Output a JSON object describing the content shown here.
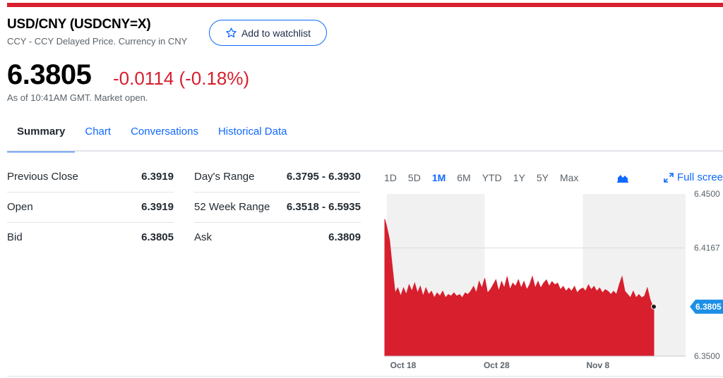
{
  "header": {
    "title": "USD/CNY (USDCNY=X)",
    "subtitle": "CCY - CCY Delayed Price. Currency in CNY",
    "watchlist_label": "Add to watchlist"
  },
  "quote": {
    "price": "6.3805",
    "change": "-0.0114 (-0.18%)",
    "as_of": "As of 10:41AM GMT. Market open."
  },
  "tabs": [
    {
      "label": "Summary",
      "active": true
    },
    {
      "label": "Chart",
      "active": false
    },
    {
      "label": "Conversations",
      "active": false
    },
    {
      "label": "Historical Data",
      "active": false
    }
  ],
  "stats_left": [
    {
      "label": "Previous Close",
      "value": "6.3919"
    },
    {
      "label": "Open",
      "value": "6.3919"
    },
    {
      "label": "Bid",
      "value": "6.3805"
    }
  ],
  "stats_right": [
    {
      "label": "Day's Range",
      "value": "6.3795 - 6.3930"
    },
    {
      "label": "52 Week Range",
      "value": "6.3518 - 6.5935"
    },
    {
      "label": "Ask",
      "value": "6.3809"
    }
  ],
  "chart_controls": {
    "ranges": [
      {
        "label": "1D",
        "active": false
      },
      {
        "label": "5D",
        "active": false
      },
      {
        "label": "1M",
        "active": true
      },
      {
        "label": "6M",
        "active": false
      },
      {
        "label": "YTD",
        "active": false
      },
      {
        "label": "1Y",
        "active": false
      },
      {
        "label": "5Y",
        "active": false
      },
      {
        "label": "Max",
        "active": false
      }
    ],
    "chart_type_icon": "area-chart-icon",
    "fullscreen_label": "Full scree",
    "fullscreen_icon": "expand-icon"
  },
  "colors": {
    "accent_red": "#d71f2e",
    "link_blue": "#0f69ff",
    "current_marker": "#1b8fe6"
  },
  "chart_data": {
    "type": "area",
    "ylim": [
      6.35,
      6.45
    ],
    "y_ticks": [
      "6.4500",
      "6.4167",
      "6.3500"
    ],
    "current_value_label": "6.3805",
    "current_value": 6.3805,
    "x_tick_labels": [
      {
        "label": "Oct 18",
        "x": 0
      },
      {
        "label": "Oct 28",
        "x": 10
      },
      {
        "label": "Nov 8",
        "x": 21
      }
    ],
    "shaded_day_ranges": [
      [
        0,
        10.5
      ],
      [
        21,
        32
      ]
    ],
    "x_range": [
      -0.2,
      32
    ],
    "series": [
      {
        "x": [
          -0.2,
          0.0,
          0.3,
          0.6,
          0.9,
          1.2,
          1.5,
          1.8,
          2.1,
          2.4,
          2.7,
          3.0,
          3.3,
          3.6,
          3.9,
          4.2,
          4.5,
          4.8,
          5.1,
          5.4,
          5.7,
          6.0,
          6.3,
          6.6,
          6.9,
          7.2,
          7.5,
          7.8,
          8.1,
          8.4,
          8.7,
          9.0,
          9.3,
          9.6,
          9.9,
          10.2,
          10.5,
          10.8,
          11.1,
          11.4,
          11.7,
          12.0,
          12.3,
          12.6,
          12.9,
          13.2,
          13.5,
          13.8,
          14.1,
          14.4,
          14.7,
          15.0,
          15.3,
          15.6,
          15.9,
          16.2,
          16.5,
          16.8,
          17.1,
          17.4,
          17.7,
          18.0,
          18.3,
          18.6,
          18.9,
          19.2,
          19.5,
          19.8,
          20.1,
          20.4,
          20.7,
          21.0,
          21.3,
          21.6,
          21.9,
          22.2,
          22.5,
          22.8,
          23.1,
          23.4,
          23.7,
          24.0,
          24.3,
          24.6,
          24.9,
          25.2,
          25.5,
          25.8,
          26.1,
          26.4,
          26.7,
          27.0,
          27.3,
          27.6,
          27.9,
          28.2,
          28.5,
          28.6
        ],
        "values": [
          6.4345,
          6.43,
          6.422,
          6.405,
          6.389,
          6.392,
          6.387,
          6.392,
          6.388,
          6.394,
          6.39,
          6.395,
          6.389,
          6.393,
          6.387,
          6.392,
          6.388,
          6.39,
          6.386,
          6.389,
          6.387,
          6.39,
          6.386,
          6.388,
          6.387,
          6.389,
          6.387,
          6.388,
          6.386,
          6.389,
          6.388,
          6.39,
          6.393,
          6.389,
          6.396,
          6.392,
          6.398,
          6.389,
          6.391,
          6.394,
          6.397,
          6.39,
          6.396,
          6.392,
          6.399,
          6.391,
          6.395,
          6.393,
          6.397,
          6.392,
          6.396,
          6.391,
          6.394,
          6.399,
          6.392,
          6.396,
          6.392,
          6.395,
          6.397,
          6.393,
          6.396,
          6.394,
          6.395,
          6.391,
          6.393,
          6.39,
          6.392,
          6.39,
          6.393,
          6.389,
          6.391,
          6.392,
          6.39,
          6.394,
          6.391,
          6.393,
          6.39,
          6.392,
          6.389,
          6.391,
          6.39,
          6.388,
          6.39,
          6.388,
          6.394,
          6.399,
          6.39,
          6.388,
          6.386,
          6.39,
          6.386,
          6.388,
          6.386,
          6.387,
          6.392,
          6.385,
          6.3805,
          6.3805
        ]
      }
    ]
  }
}
